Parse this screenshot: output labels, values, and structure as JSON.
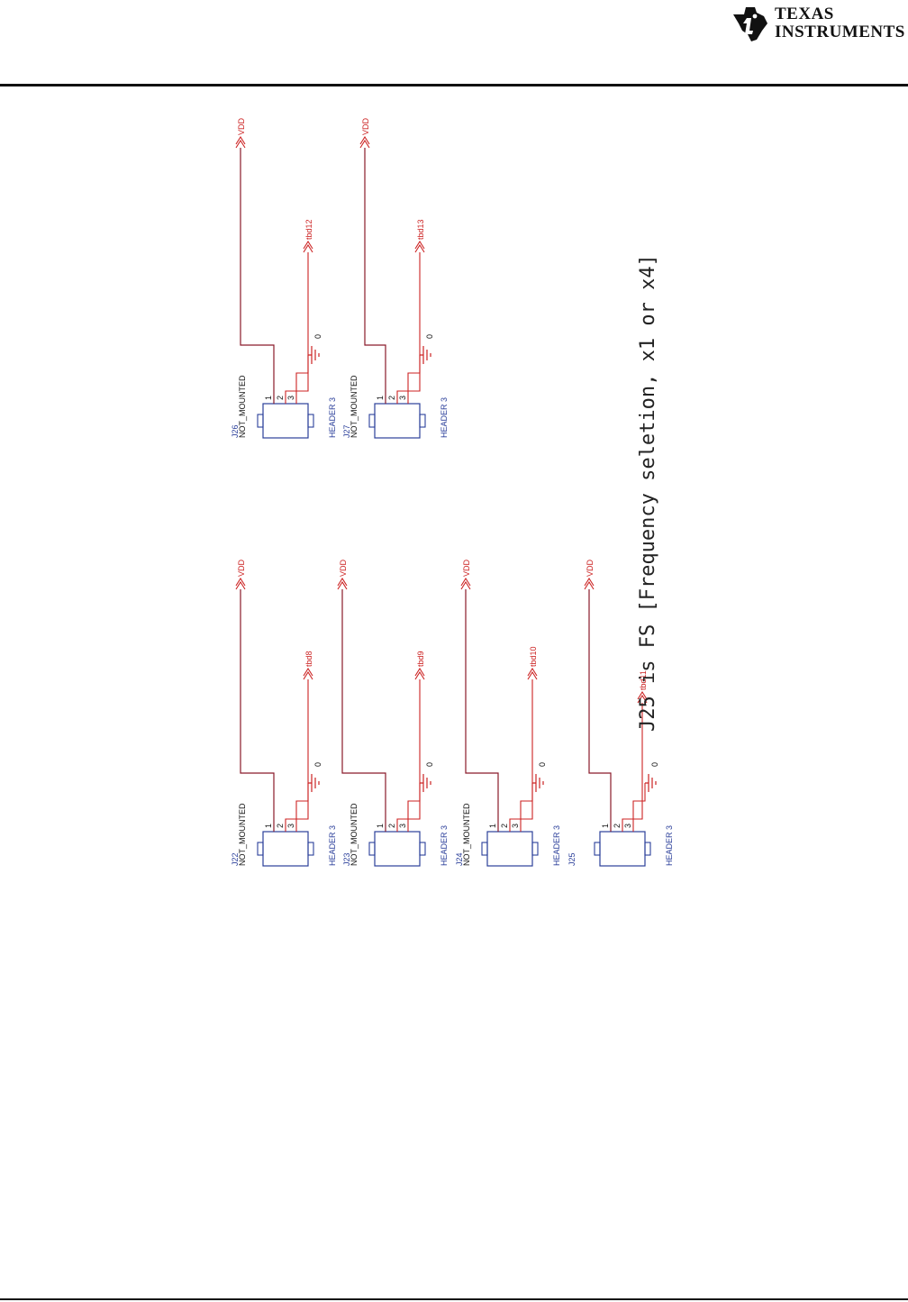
{
  "header": {
    "brand_line1": "Texas",
    "brand_line2": "Instruments"
  },
  "note": "J25 is FS [Frequency seletion, x1 or x4]",
  "connectors": [
    {
      "ref": "J22",
      "mount": "NOT_MOUNTED",
      "part": "HEADER 3",
      "power": "VDD",
      "signal": "tbd8",
      "ground": "0",
      "pins": [
        "1",
        "2",
        "3"
      ]
    },
    {
      "ref": "J23",
      "mount": "NOT_MOUNTED",
      "part": "HEADER 3",
      "power": "VDD",
      "signal": "tbd9",
      "ground": "0",
      "pins": [
        "1",
        "2",
        "3"
      ]
    },
    {
      "ref": "J24",
      "mount": "NOT_MOUNTED",
      "part": "HEADER 3",
      "power": "VDD",
      "signal": "tbd10",
      "ground": "0",
      "pins": [
        "1",
        "2",
        "3"
      ]
    },
    {
      "ref": "J25",
      "mount": "",
      "part": "HEADER 3",
      "power": "VDD",
      "signal": "tbd11",
      "ground": "0",
      "pins": [
        "1",
        "2",
        "3"
      ]
    },
    {
      "ref": "J26",
      "mount": "NOT_MOUNTED",
      "part": "HEADER 3",
      "power": "VDD",
      "signal": "tbd12",
      "ground": "0",
      "pins": [
        "1",
        "2",
        "3"
      ]
    },
    {
      "ref": "J27",
      "mount": "NOT_MOUNTED",
      "part": "HEADER 3",
      "power": "VDD",
      "signal": "tbd13",
      "ground": "0",
      "pins": [
        "1",
        "2",
        "3"
      ]
    }
  ],
  "colors": {
    "net": "#cc2222",
    "part": "#2b3f9a",
    "text": "#111111"
  }
}
